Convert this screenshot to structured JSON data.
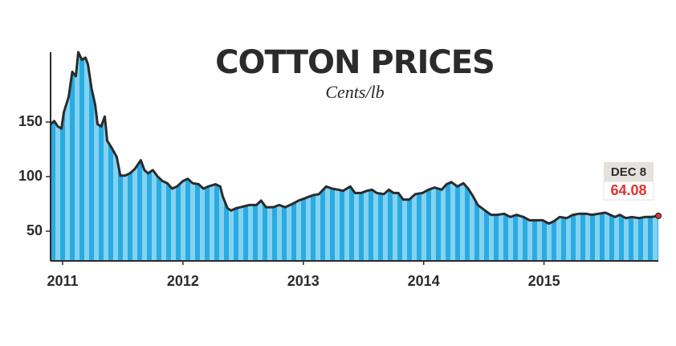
{
  "chart_data": {
    "type": "area",
    "title": "COTTON PRICES",
    "subtitle": "Cents/lb",
    "x": [
      2010.9,
      2010.93,
      2010.96,
      2010.99,
      2011.01,
      2011.05,
      2011.08,
      2011.11,
      2011.13,
      2011.16,
      2011.19,
      2011.21,
      2011.24,
      2011.27,
      2011.29,
      2011.32,
      2011.35,
      2011.37,
      2011.41,
      2011.45,
      2011.48,
      2011.52,
      2011.56,
      2011.6,
      2011.65,
      2011.68,
      2011.71,
      2011.75,
      2011.79,
      2011.83,
      2011.87,
      2011.91,
      2011.95,
      2012.0,
      2012.04,
      2012.08,
      2012.13,
      2012.17,
      2012.21,
      2012.27,
      2012.31,
      2012.33,
      2012.37,
      2012.4,
      2012.44,
      2012.48,
      2012.55,
      2012.61,
      2012.65,
      2012.69,
      2012.75,
      2012.8,
      2012.85,
      2012.91,
      2012.96,
      2013.01,
      2013.08,
      2013.13,
      2013.19,
      2013.24,
      2013.29,
      2013.33,
      2013.39,
      2013.43,
      2013.48,
      2013.53,
      2013.57,
      2013.61,
      2013.67,
      2013.71,
      2013.75,
      2013.79,
      2013.83,
      2013.88,
      2013.93,
      2013.99,
      2014.04,
      2014.09,
      2014.15,
      2014.19,
      2014.23,
      2014.28,
      2014.33,
      2014.37,
      2014.41,
      2014.45,
      2014.51,
      2014.56,
      2014.61,
      2014.67,
      2014.72,
      2014.77,
      2014.83,
      2014.88,
      2014.93,
      2014.99,
      2015.04,
      2015.08,
      2015.13,
      2015.19,
      2015.24,
      2015.29,
      2015.35,
      2015.4,
      2015.45,
      2015.51,
      2015.55,
      2015.59,
      2015.63,
      2015.68,
      2015.73,
      2015.79,
      2015.84,
      2015.89,
      2015.95
    ],
    "series": [
      {
        "name": "Cotton",
        "color": "#2b2b2b",
        "fill": "#29abe2",
        "fill_alt": "#84d2f1",
        "values": [
          148,
          151,
          146,
          144,
          159,
          173,
          196,
          192,
          214,
          207,
          209,
          203,
          181,
          166,
          148,
          146,
          155,
          133,
          126,
          118,
          101,
          101,
          103,
          107,
          115,
          106,
          103,
          106,
          100,
          96,
          94,
          89,
          91,
          96,
          98,
          94,
          93,
          89,
          91,
          93,
          91,
          82,
          71,
          69,
          71,
          72,
          74,
          74,
          78,
          72,
          72,
          74,
          72,
          75,
          78,
          80,
          83,
          84,
          91,
          89,
          88,
          87,
          91,
          85,
          85,
          87,
          88,
          85,
          84,
          88,
          85,
          85,
          79,
          79,
          84,
          85,
          88,
          90,
          88,
          93,
          95,
          91,
          94,
          89,
          82,
          74,
          69,
          65,
          65,
          66,
          63,
          65,
          63,
          60,
          60,
          60,
          57,
          59,
          63,
          62,
          65,
          66,
          66,
          65,
          66,
          67,
          65,
          63,
          65,
          62,
          63,
          62,
          63,
          63,
          64.08
        ]
      }
    ],
    "end_date_label": "DEC 8",
    "end_value_label": "64.08",
    "end_marker_color": "#e0322f",
    "xlim": [
      2010.9,
      2015.95
    ],
    "xticks": [
      2011,
      2012,
      2013,
      2014,
      2015
    ],
    "ylim": [
      22.8,
      214
    ],
    "yticks": [
      50,
      100,
      150
    ]
  }
}
